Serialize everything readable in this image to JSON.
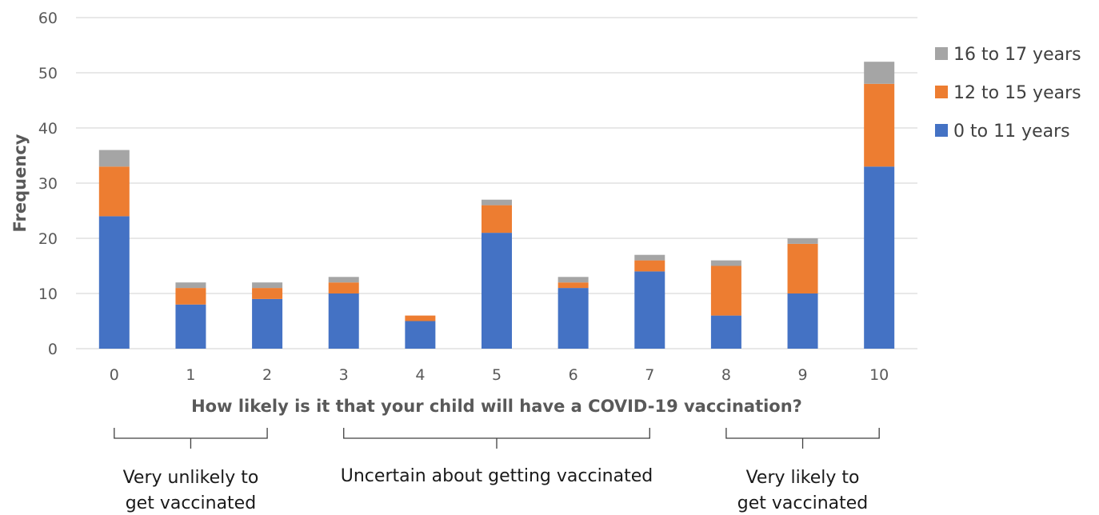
{
  "chart_data": {
    "type": "bar",
    "stacked": true,
    "categories": [
      "0",
      "1",
      "2",
      "3",
      "4",
      "5",
      "6",
      "7",
      "8",
      "9",
      "10"
    ],
    "series": [
      {
        "name": "0 to 11 years",
        "color": "#4472C4",
        "values": [
          24,
          8,
          9,
          10,
          5,
          21,
          11,
          14,
          6,
          10,
          33
        ]
      },
      {
        "name": "12 to 15 years",
        "color": "#ED7D31",
        "values": [
          9,
          3,
          2,
          2,
          1,
          5,
          1,
          2,
          9,
          9,
          15
        ]
      },
      {
        "name": "16 to 17 years",
        "color": "#A5A5A5",
        "values": [
          3,
          1,
          1,
          1,
          0,
          1,
          1,
          1,
          1,
          1,
          4
        ]
      }
    ],
    "legend_order": [
      "16 to 17 years",
      "12 to 15 years",
      "0 to 11 years"
    ],
    "xlabel": "How likely is it that your child will have a COVID-19 vaccination?",
    "ylabel": "Frequency",
    "ylim": [
      0,
      60
    ],
    "yticks": [
      0,
      10,
      20,
      30,
      40,
      50,
      60
    ],
    "grid": true,
    "legend_position": "right",
    "annotations": [
      {
        "range": [
          "0",
          "2"
        ],
        "lines": [
          "Very unlikely to",
          "get vaccinated"
        ]
      },
      {
        "range": [
          "3",
          "7"
        ],
        "lines": [
          "Uncertain about getting vaccinated"
        ]
      },
      {
        "range": [
          "8",
          "10"
        ],
        "lines": [
          "Very likely to",
          "get vaccinated"
        ]
      }
    ]
  }
}
